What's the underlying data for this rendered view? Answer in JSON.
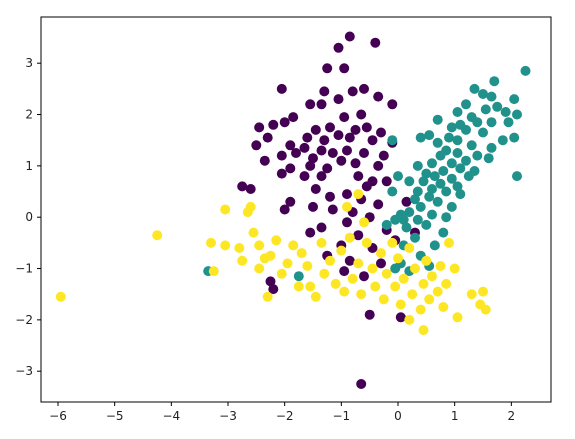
{
  "chart_data": {
    "type": "scatter",
    "title": "",
    "xlabel": "",
    "ylabel": "",
    "xlim": [
      -6.3,
      2.7
    ],
    "ylim": [
      -3.6,
      3.9
    ],
    "xticks": [
      -6,
      -5,
      -4,
      -3,
      -2,
      -1,
      0,
      1,
      2
    ],
    "yticks": [
      -3,
      -2,
      -1,
      0,
      1,
      2,
      3
    ],
    "xtick_labels": [
      "−6",
      "−5",
      "−4",
      "−3",
      "−2",
      "−1",
      "0",
      "1",
      "2"
    ],
    "ytick_labels": [
      "−3",
      "−2",
      "−1",
      "0",
      "1",
      "2",
      "3"
    ],
    "grid": false,
    "legend": "none",
    "series": [
      {
        "color": "#440154",
        "points": [
          [
            -0.85,
            3.52
          ],
          [
            -1.05,
            3.3
          ],
          [
            -0.4,
            3.4
          ],
          [
            -1.25,
            2.9
          ],
          [
            -0.95,
            2.9
          ],
          [
            -2.05,
            2.5
          ],
          [
            -1.3,
            2.45
          ],
          [
            -0.8,
            2.45
          ],
          [
            -0.6,
            2.5
          ],
          [
            -1.05,
            2.3
          ],
          [
            -0.35,
            2.35
          ],
          [
            -1.35,
            2.2
          ],
          [
            -1.55,
            2.2
          ],
          [
            -0.1,
            2.2
          ],
          [
            -0.65,
            2.0
          ],
          [
            -0.95,
            1.95
          ],
          [
            -1.85,
            1.95
          ],
          [
            -2.0,
            1.85
          ],
          [
            -2.2,
            1.8
          ],
          [
            -2.45,
            1.75
          ],
          [
            -1.2,
            1.75
          ],
          [
            -1.45,
            1.7
          ],
          [
            -0.55,
            1.75
          ],
          [
            -0.3,
            1.65
          ],
          [
            -0.75,
            1.7
          ],
          [
            -1.05,
            1.6
          ],
          [
            -0.85,
            1.55
          ],
          [
            -2.3,
            1.55
          ],
          [
            -1.6,
            1.55
          ],
          [
            -1.3,
            1.5
          ],
          [
            -0.45,
            1.5
          ],
          [
            -0.1,
            1.45
          ],
          [
            -2.5,
            1.4
          ],
          [
            -1.9,
            1.4
          ],
          [
            -1.65,
            1.35
          ],
          [
            -1.35,
            1.3
          ],
          [
            -0.9,
            1.3
          ],
          [
            -1.15,
            1.25
          ],
          [
            -0.6,
            1.25
          ],
          [
            -1.8,
            1.25
          ],
          [
            -2.05,
            1.2
          ],
          [
            -0.25,
            1.2
          ],
          [
            -2.35,
            1.1
          ],
          [
            -1.5,
            1.15
          ],
          [
            -1.0,
            1.1
          ],
          [
            -0.75,
            1.05
          ],
          [
            -0.35,
            1.0
          ],
          [
            -1.55,
            1.0
          ],
          [
            -1.9,
            0.95
          ],
          [
            -1.25,
            0.95
          ],
          [
            -2.05,
            0.85
          ],
          [
            -1.65,
            0.8
          ],
          [
            -1.35,
            0.8
          ],
          [
            -0.7,
            0.8
          ],
          [
            -0.45,
            0.7
          ],
          [
            -0.2,
            0.7
          ],
          [
            -0.55,
            0.6
          ],
          [
            -2.75,
            0.6
          ],
          [
            -2.6,
            0.55
          ],
          [
            -1.45,
            0.55
          ],
          [
            -0.9,
            0.45
          ],
          [
            -1.2,
            0.4
          ],
          [
            -0.65,
            0.35
          ],
          [
            -1.9,
            0.3
          ],
          [
            -0.35,
            0.25
          ],
          [
            -1.5,
            0.2
          ],
          [
            -2.0,
            0.15
          ],
          [
            -0.8,
            0.1
          ],
          [
            -1.15,
            0.15
          ],
          [
            -0.5,
            0.0
          ],
          [
            -0.9,
            -0.1
          ],
          [
            -1.35,
            -0.2
          ],
          [
            -0.2,
            -0.25
          ],
          [
            -0.05,
            -0.45
          ],
          [
            -1.55,
            -0.3
          ],
          [
            -0.7,
            -0.35
          ],
          [
            -1.0,
            -0.55
          ],
          [
            -0.45,
            -0.6
          ],
          [
            -1.25,
            -0.75
          ],
          [
            -0.85,
            -0.85
          ],
          [
            -0.3,
            -0.9
          ],
          [
            -0.95,
            -1.05
          ],
          [
            -0.6,
            -1.15
          ],
          [
            -2.25,
            -1.25
          ],
          [
            -2.2,
            -1.4
          ],
          [
            -0.5,
            -1.9
          ],
          [
            0.05,
            -1.95
          ],
          [
            -0.65,
            -3.25
          ],
          [
            0.3,
            -0.3
          ],
          [
            0.15,
            0.3
          ]
        ]
      },
      {
        "color": "#21918c",
        "points": [
          [
            2.25,
            2.85
          ],
          [
            1.7,
            2.65
          ],
          [
            1.35,
            2.5
          ],
          [
            1.5,
            2.4
          ],
          [
            1.65,
            2.35
          ],
          [
            2.05,
            2.3
          ],
          [
            1.9,
            2.05
          ],
          [
            1.75,
            2.15
          ],
          [
            1.2,
            2.2
          ],
          [
            1.55,
            2.1
          ],
          [
            2.1,
            2.0
          ],
          [
            1.05,
            2.05
          ],
          [
            1.3,
            1.95
          ],
          [
            1.95,
            1.85
          ],
          [
            1.65,
            1.85
          ],
          [
            1.4,
            1.85
          ],
          [
            0.7,
            1.9
          ],
          [
            1.1,
            1.8
          ],
          [
            0.95,
            1.75
          ],
          [
            1.2,
            1.7
          ],
          [
            1.5,
            1.65
          ],
          [
            2.05,
            1.55
          ],
          [
            1.85,
            1.5
          ],
          [
            0.9,
            1.55
          ],
          [
            0.55,
            1.6
          ],
          [
            0.7,
            1.45
          ],
          [
            1.05,
            1.5
          ],
          [
            1.3,
            1.4
          ],
          [
            1.65,
            1.35
          ],
          [
            0.4,
            1.55
          ],
          [
            -0.1,
            1.5
          ],
          [
            0.85,
            1.3
          ],
          [
            1.05,
            1.25
          ],
          [
            0.75,
            1.2
          ],
          [
            1.4,
            1.2
          ],
          [
            1.6,
            1.15
          ],
          [
            1.2,
            1.1
          ],
          [
            0.95,
            1.05
          ],
          [
            0.6,
            1.05
          ],
          [
            0.35,
            1.0
          ],
          [
            1.1,
            0.95
          ],
          [
            1.35,
            0.9
          ],
          [
            0.8,
            0.9
          ],
          [
            0.5,
            0.85
          ],
          [
            0.65,
            0.8
          ],
          [
            1.25,
            0.8
          ],
          [
            2.1,
            0.8
          ],
          [
            0.95,
            0.75
          ],
          [
            0.45,
            0.7
          ],
          [
            0.2,
            0.7
          ],
          [
            0.75,
            0.65
          ],
          [
            1.05,
            0.6
          ],
          [
            0.6,
            0.55
          ],
          [
            0.35,
            0.5
          ],
          [
            0.85,
            0.5
          ],
          [
            1.1,
            0.45
          ],
          [
            0.55,
            0.4
          ],
          [
            0.3,
            0.35
          ],
          [
            -0.1,
            0.5
          ],
          [
            0.7,
            0.3
          ],
          [
            0.95,
            0.2
          ],
          [
            0.4,
            0.2
          ],
          [
            0.2,
            0.1
          ],
          [
            0.6,
            0.05
          ],
          [
            0.05,
            0.05
          ],
          [
            0.85,
            0.0
          ],
          [
            -0.05,
            -0.05
          ],
          [
            0.35,
            -0.05
          ],
          [
            0.5,
            -0.15
          ],
          [
            0.15,
            -0.2
          ],
          [
            -0.2,
            -0.15
          ],
          [
            0.8,
            -0.3
          ],
          [
            0.3,
            -0.4
          ],
          [
            0.65,
            -0.55
          ],
          [
            0.1,
            -0.55
          ],
          [
            0.4,
            -0.75
          ],
          [
            0.55,
            -0.95
          ],
          [
            0.05,
            -0.9
          ],
          [
            -0.05,
            -1.0
          ],
          [
            0.2,
            -1.05
          ],
          [
            0.1,
            -0.05
          ],
          [
            -1.75,
            -1.15
          ],
          [
            -3.35,
            -1.05
          ],
          [
            0.0,
            0.8
          ]
        ]
      },
      {
        "color": "#fde725",
        "points": [
          [
            -5.95,
            -1.55
          ],
          [
            -4.25,
            -0.35
          ],
          [
            -3.3,
            -0.5
          ],
          [
            -3.25,
            -1.05
          ],
          [
            -3.05,
            0.15
          ],
          [
            -3.05,
            -0.55
          ],
          [
            -2.8,
            -0.6
          ],
          [
            -2.65,
            0.1
          ],
          [
            -2.55,
            -0.3
          ],
          [
            -2.45,
            -0.55
          ],
          [
            -2.35,
            -0.8
          ],
          [
            -2.45,
            -1.0
          ],
          [
            -2.25,
            -0.75
          ],
          [
            -2.15,
            -0.45
          ],
          [
            -2.05,
            -1.1
          ],
          [
            -1.95,
            -0.9
          ],
          [
            -1.85,
            -0.55
          ],
          [
            -1.7,
            -0.7
          ],
          [
            -1.6,
            -0.95
          ],
          [
            -1.55,
            -1.35
          ],
          [
            -1.45,
            -1.55
          ],
          [
            -1.3,
            -1.1
          ],
          [
            -1.2,
            -0.85
          ],
          [
            -1.1,
            -1.3
          ],
          [
            -1.0,
            -0.65
          ],
          [
            -0.95,
            -1.45
          ],
          [
            -0.85,
            -0.4
          ],
          [
            -0.8,
            -1.2
          ],
          [
            -0.7,
            -0.9
          ],
          [
            -0.65,
            -1.5
          ],
          [
            -0.55,
            -0.5
          ],
          [
            -0.45,
            -1.0
          ],
          [
            -0.4,
            -1.35
          ],
          [
            -0.3,
            -0.7
          ],
          [
            -0.25,
            -1.6
          ],
          [
            -0.2,
            -1.1
          ],
          [
            -0.1,
            -0.5
          ],
          [
            -0.05,
            -1.35
          ],
          [
            0.0,
            -0.8
          ],
          [
            0.05,
            -1.7
          ],
          [
            0.1,
            -1.2
          ],
          [
            0.2,
            -0.6
          ],
          [
            0.25,
            -1.5
          ],
          [
            0.3,
            -1.0
          ],
          [
            0.4,
            -1.8
          ],
          [
            0.45,
            -1.3
          ],
          [
            0.5,
            -0.85
          ],
          [
            0.55,
            -1.6
          ],
          [
            0.6,
            -1.15
          ],
          [
            0.7,
            -1.45
          ],
          [
            0.75,
            -0.95
          ],
          [
            0.8,
            -1.75
          ],
          [
            0.85,
            -1.3
          ],
          [
            0.9,
            -0.5
          ],
          [
            1.0,
            -1.0
          ],
          [
            1.05,
            -1.95
          ],
          [
            1.3,
            -1.5
          ],
          [
            1.45,
            -1.7
          ],
          [
            1.5,
            -1.45
          ],
          [
            1.55,
            -1.8
          ],
          [
            -0.7,
            0.45
          ],
          [
            -0.9,
            0.2
          ],
          [
            -2.75,
            -0.85
          ],
          [
            -2.6,
            0.2
          ],
          [
            -2.3,
            -1.55
          ],
          [
            -1.75,
            -1.35
          ],
          [
            -1.35,
            -0.5
          ],
          [
            -0.6,
            -0.1
          ],
          [
            0.45,
            -2.2
          ],
          [
            0.2,
            -2.0
          ]
        ]
      }
    ]
  }
}
